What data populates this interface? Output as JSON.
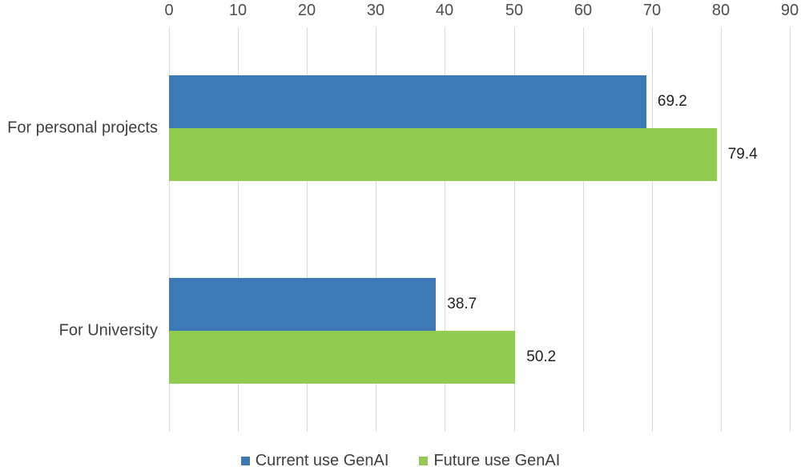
{
  "colors": {
    "background": "#FFFFFF",
    "series_blue": "#3C79B6",
    "series_green": "#91CB50",
    "gridline": "#D9D9D9",
    "axis_text": "#4D4D4D",
    "category_text": "#3F3F3F",
    "data_label_text": "#212121",
    "legend_text": "#3F3F3F"
  },
  "chart_data": {
    "type": "bar",
    "orientation": "horizontal",
    "title": "",
    "xlabel": "",
    "ylabel": "",
    "grid": "vertical",
    "categories": [
      "For personal projects",
      "For University"
    ],
    "series": [
      {
        "name": "Current use GenAI",
        "color": "#3C79B6",
        "values": [
          69.2,
          38.7
        ],
        "labels": [
          "69.2",
          "38.7"
        ]
      },
      {
        "name": "Future use GenAI",
        "color": "#91CB50",
        "values": [
          79.4,
          50.2
        ],
        "labels": [
          "79.4",
          "50.2"
        ]
      }
    ],
    "x_axis": {
      "position": "top",
      "min": 0,
      "max": 90,
      "tick_interval": 10,
      "tick_labels": [
        "0",
        "10",
        "20",
        "30",
        "40",
        "50",
        "60",
        "70",
        "80",
        "90"
      ]
    },
    "data_labels_shown": true,
    "legend": {
      "position": "bottom",
      "entries": [
        "Current use GenAI",
        "Future use GenAI"
      ]
    }
  }
}
